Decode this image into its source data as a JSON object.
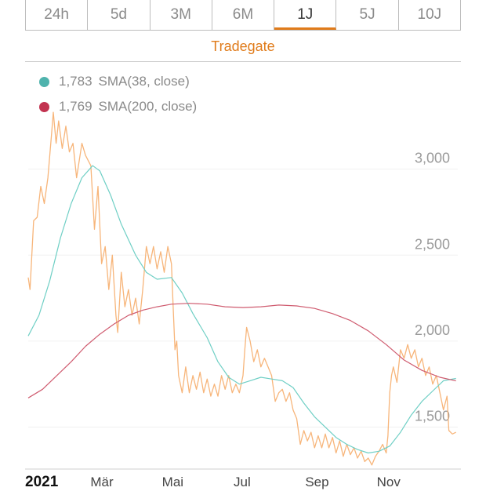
{
  "tabs": [
    "24h",
    "5d",
    "3M",
    "6M",
    "1J",
    "5J",
    "10J"
  ],
  "active_tab": "1J",
  "exchange": "Tradegate",
  "colors": {
    "accent": "#e07b1a",
    "price": "#f7b57a",
    "sma38": "#6fcfc5",
    "sma200": "#cf5b6f",
    "sma38_dot": "#4fb3ad",
    "sma200_dot": "#c23350"
  },
  "legend": [
    {
      "value": "1,783",
      "label": "SMA(38, close)",
      "color": "#4fb3ad"
    },
    {
      "value": "1,769",
      "label": "SMA(200, close)",
      "color": "#c23350"
    }
  ],
  "chart_data": {
    "type": "line",
    "xlabel": "",
    "ylabel": "",
    "x_range": [
      0,
      12
    ],
    "ylim": [
      1270,
      3550
    ],
    "y_ticks": [
      3000,
      2500,
      2000,
      1500
    ],
    "y_tick_labels": [
      "3,000",
      "2,500",
      "2,000",
      "1,500"
    ],
    "x_ticks": [
      {
        "x": 0,
        "label": "2021",
        "bold": true
      },
      {
        "x": 2,
        "label": "Mär",
        "bold": false
      },
      {
        "x": 4,
        "label": "Mai",
        "bold": false
      },
      {
        "x": 6,
        "label": "Jul",
        "bold": false
      },
      {
        "x": 8,
        "label": "Sep",
        "bold": false
      },
      {
        "x": 10,
        "label": "Nov",
        "bold": false
      }
    ],
    "grid": true,
    "series": [
      {
        "name": "",
        "color": "#f7b57a",
        "points": [
          [
            0.0,
            2370
          ],
          [
            0.05,
            2300
          ],
          [
            0.15,
            2700
          ],
          [
            0.25,
            2720
          ],
          [
            0.35,
            2900
          ],
          [
            0.45,
            2800
          ],
          [
            0.55,
            2950
          ],
          [
            0.65,
            3200
          ],
          [
            0.7,
            3330
          ],
          [
            0.78,
            3150
          ],
          [
            0.85,
            3280
          ],
          [
            0.95,
            3120
          ],
          [
            1.05,
            3250
          ],
          [
            1.15,
            3100
          ],
          [
            1.25,
            3150
          ],
          [
            1.35,
            2950
          ],
          [
            1.5,
            3150
          ],
          [
            1.6,
            3080
          ],
          [
            1.75,
            3020
          ],
          [
            1.85,
            2650
          ],
          [
            1.95,
            2900
          ],
          [
            2.05,
            2450
          ],
          [
            2.15,
            2550
          ],
          [
            2.25,
            2300
          ],
          [
            2.35,
            2500
          ],
          [
            2.45,
            2150
          ],
          [
            2.5,
            2050
          ],
          [
            2.6,
            2400
          ],
          [
            2.7,
            2200
          ],
          [
            2.8,
            2300
          ],
          [
            2.9,
            2150
          ],
          [
            3.0,
            2250
          ],
          [
            3.1,
            2100
          ],
          [
            3.2,
            2300
          ],
          [
            3.3,
            2550
          ],
          [
            3.4,
            2450
          ],
          [
            3.5,
            2550
          ],
          [
            3.6,
            2420
          ],
          [
            3.7,
            2520
          ],
          [
            3.8,
            2400
          ],
          [
            3.9,
            2550
          ],
          [
            4.0,
            2450
          ],
          [
            4.05,
            2200
          ],
          [
            4.1,
            1950
          ],
          [
            4.15,
            2000
          ],
          [
            4.2,
            1800
          ],
          [
            4.3,
            1700
          ],
          [
            4.4,
            1850
          ],
          [
            4.5,
            1700
          ],
          [
            4.6,
            1800
          ],
          [
            4.7,
            1720
          ],
          [
            4.8,
            1820
          ],
          [
            4.9,
            1700
          ],
          [
            5.0,
            1780
          ],
          [
            5.1,
            1680
          ],
          [
            5.2,
            1750
          ],
          [
            5.3,
            1680
          ],
          [
            5.4,
            1800
          ],
          [
            5.5,
            1720
          ],
          [
            5.6,
            1800
          ],
          [
            5.7,
            1700
          ],
          [
            5.8,
            1750
          ],
          [
            5.9,
            1700
          ],
          [
            6.0,
            1800
          ],
          [
            6.05,
            1950
          ],
          [
            6.1,
            2080
          ],
          [
            6.2,
            2000
          ],
          [
            6.3,
            1880
          ],
          [
            6.4,
            1950
          ],
          [
            6.5,
            1850
          ],
          [
            6.6,
            1900
          ],
          [
            6.7,
            1850
          ],
          [
            6.8,
            1800
          ],
          [
            6.9,
            1650
          ],
          [
            7.0,
            1700
          ],
          [
            7.1,
            1720
          ],
          [
            7.2,
            1650
          ],
          [
            7.3,
            1700
          ],
          [
            7.4,
            1600
          ],
          [
            7.5,
            1550
          ],
          [
            7.6,
            1400
          ],
          [
            7.7,
            1480
          ],
          [
            7.8,
            1420
          ],
          [
            7.9,
            1470
          ],
          [
            8.0,
            1380
          ],
          [
            8.1,
            1450
          ],
          [
            8.2,
            1380
          ],
          [
            8.3,
            1460
          ],
          [
            8.4,
            1380
          ],
          [
            8.5,
            1440
          ],
          [
            8.6,
            1350
          ],
          [
            8.7,
            1420
          ],
          [
            8.8,
            1330
          ],
          [
            8.9,
            1400
          ],
          [
            9.0,
            1340
          ],
          [
            9.1,
            1380
          ],
          [
            9.2,
            1320
          ],
          [
            9.3,
            1360
          ],
          [
            9.4,
            1300
          ],
          [
            9.5,
            1320
          ],
          [
            9.6,
            1280
          ],
          [
            9.7,
            1330
          ],
          [
            9.8,
            1360
          ],
          [
            9.9,
            1400
          ],
          [
            10.0,
            1350
          ],
          [
            10.05,
            1450
          ],
          [
            10.1,
            1700
          ],
          [
            10.15,
            1800
          ],
          [
            10.2,
            1850
          ],
          [
            10.3,
            1760
          ],
          [
            10.4,
            1950
          ],
          [
            10.5,
            1900
          ],
          [
            10.6,
            1980
          ],
          [
            10.7,
            1900
          ],
          [
            10.8,
            1950
          ],
          [
            10.9,
            1850
          ],
          [
            11.0,
            1900
          ],
          [
            11.1,
            1800
          ],
          [
            11.2,
            1850
          ],
          [
            11.3,
            1750
          ],
          [
            11.4,
            1800
          ],
          [
            11.5,
            1700
          ],
          [
            11.6,
            1600
          ],
          [
            11.7,
            1680
          ],
          [
            11.75,
            1480
          ],
          [
            11.85,
            1460
          ],
          [
            11.95,
            1470
          ]
        ]
      },
      {
        "name": "SMA(38, close)",
        "color": "#6fcfc5",
        "points": [
          [
            0.0,
            2030
          ],
          [
            0.3,
            2150
          ],
          [
            0.6,
            2350
          ],
          [
            0.9,
            2600
          ],
          [
            1.2,
            2800
          ],
          [
            1.5,
            2950
          ],
          [
            1.8,
            3020
          ],
          [
            2.0,
            2990
          ],
          [
            2.3,
            2850
          ],
          [
            2.6,
            2680
          ],
          [
            3.0,
            2500
          ],
          [
            3.3,
            2400
          ],
          [
            3.6,
            2360
          ],
          [
            4.0,
            2370
          ],
          [
            4.3,
            2280
          ],
          [
            4.6,
            2160
          ],
          [
            5.0,
            2020
          ],
          [
            5.3,
            1880
          ],
          [
            5.6,
            1790
          ],
          [
            5.9,
            1750
          ],
          [
            6.2,
            1770
          ],
          [
            6.5,
            1790
          ],
          [
            6.8,
            1780
          ],
          [
            7.1,
            1770
          ],
          [
            7.4,
            1730
          ],
          [
            7.7,
            1640
          ],
          [
            8.0,
            1560
          ],
          [
            8.3,
            1500
          ],
          [
            8.6,
            1440
          ],
          [
            8.9,
            1400
          ],
          [
            9.2,
            1370
          ],
          [
            9.5,
            1350
          ],
          [
            9.8,
            1360
          ],
          [
            10.1,
            1390
          ],
          [
            10.4,
            1470
          ],
          [
            10.7,
            1570
          ],
          [
            11.0,
            1650
          ],
          [
            11.3,
            1710
          ],
          [
            11.6,
            1770
          ],
          [
            11.95,
            1783
          ]
        ]
      },
      {
        "name": "SMA(200, close)",
        "color": "#cf5b6f",
        "points": [
          [
            0.0,
            1670
          ],
          [
            0.4,
            1720
          ],
          [
            0.8,
            1800
          ],
          [
            1.2,
            1880
          ],
          [
            1.6,
            1970
          ],
          [
            2.0,
            2040
          ],
          [
            2.4,
            2100
          ],
          [
            2.8,
            2150
          ],
          [
            3.2,
            2180
          ],
          [
            3.6,
            2200
          ],
          [
            4.0,
            2215
          ],
          [
            4.5,
            2220
          ],
          [
            5.0,
            2215
          ],
          [
            5.5,
            2200
          ],
          [
            6.0,
            2195
          ],
          [
            6.5,
            2200
          ],
          [
            7.0,
            2210
          ],
          [
            7.5,
            2205
          ],
          [
            8.0,
            2190
          ],
          [
            8.5,
            2160
          ],
          [
            9.0,
            2120
          ],
          [
            9.5,
            2060
          ],
          [
            10.0,
            1980
          ],
          [
            10.5,
            1890
          ],
          [
            11.0,
            1830
          ],
          [
            11.5,
            1790
          ],
          [
            11.95,
            1769
          ]
        ]
      }
    ]
  }
}
